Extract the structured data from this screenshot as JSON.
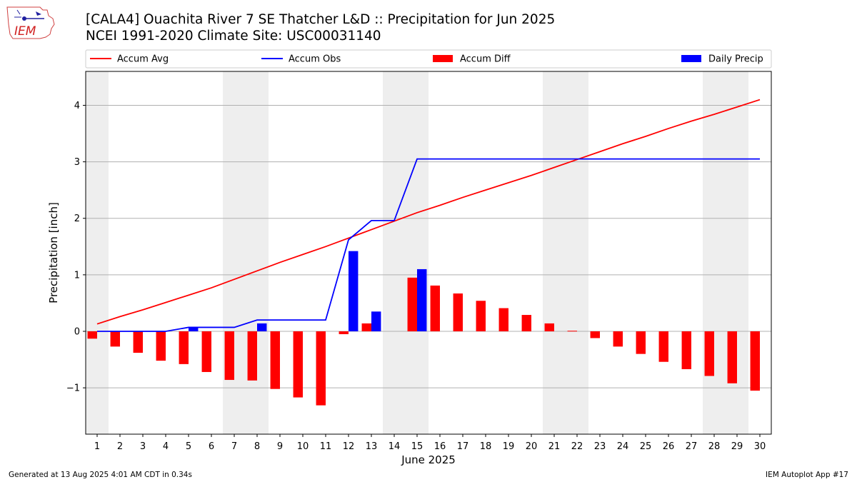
{
  "header": {
    "logo_text": "IEM",
    "title_line1": "[CALA4] Ouachita River 7 SE Thatcher L&D :: Precipitation for Jun 2025",
    "title_line2": "NCEI 1991-2020 Climate Site: USC00031140"
  },
  "footer": {
    "left": "Generated at 13 Aug 2025 4:01 AM CDT in 0.34s",
    "right": "IEM Autoplot App #17"
  },
  "chart_data": {
    "type": "bar",
    "xlabel": "June 2025",
    "ylabel": "Precipitation [inch]",
    "categories": [
      "1",
      "2",
      "3",
      "4",
      "5",
      "6",
      "7",
      "8",
      "9",
      "10",
      "11",
      "12",
      "13",
      "14",
      "15",
      "16",
      "17",
      "18",
      "19",
      "20",
      "21",
      "22",
      "23",
      "24",
      "25",
      "26",
      "27",
      "28",
      "29",
      "30"
    ],
    "ylim": [
      -1.82,
      4.6
    ],
    "yticks": [
      -1,
      0,
      1,
      2,
      3,
      4
    ],
    "ytick_labels": [
      "−1",
      "0",
      "1",
      "2",
      "3",
      "4"
    ],
    "grid": true,
    "weekend_shading_days": [
      1,
      7,
      8,
      14,
      15,
      21,
      22,
      28,
      29
    ],
    "legend": {
      "placement": "top",
      "columns": 4
    },
    "series": [
      {
        "name": "Accum Avg",
        "kind": "line",
        "color": "#ff0000",
        "values": [
          0.13,
          0.26,
          0.38,
          0.51,
          0.64,
          0.77,
          0.92,
          1.07,
          1.22,
          1.36,
          1.5,
          1.65,
          1.8,
          1.95,
          2.1,
          2.23,
          2.37,
          2.5,
          2.63,
          2.76,
          2.9,
          3.04,
          3.18,
          3.32,
          3.45,
          3.59,
          3.72,
          3.84,
          3.97,
          4.1
        ]
      },
      {
        "name": "Accum Obs",
        "kind": "line",
        "color": "#0000ff",
        "values": [
          0,
          0,
          0,
          0,
          0.07,
          0.07,
          0.07,
          0.2,
          0.2,
          0.2,
          0.2,
          1.62,
          1.96,
          1.96,
          3.05,
          3.05,
          3.05,
          3.05,
          3.05,
          3.05,
          3.05,
          3.05,
          3.05,
          3.05,
          3.05,
          3.05,
          3.05,
          3.05,
          3.05,
          3.05
        ]
      },
      {
        "name": "Accum Diff",
        "kind": "bar",
        "color": "#ff0000",
        "values": [
          -0.13,
          -0.27,
          -0.38,
          -0.52,
          -0.58,
          -0.72,
          -0.86,
          -0.87,
          -1.02,
          -1.17,
          -1.31,
          -0.05,
          0.14,
          null,
          0.95,
          0.81,
          0.67,
          0.54,
          0.41,
          0.29,
          0.14,
          0.01,
          -0.12,
          -0.27,
          -0.4,
          -0.54,
          -0.67,
          -0.79,
          -0.92,
          -1.05
        ]
      },
      {
        "name": "Daily Precip",
        "kind": "bar",
        "color": "#0000ff",
        "values": [
          0,
          0,
          0,
          0,
          0.07,
          0,
          0,
          0.14,
          0,
          0,
          0,
          1.42,
          0.35,
          0,
          1.1,
          0,
          0,
          0,
          0,
          0,
          0,
          0,
          0,
          0,
          0,
          0,
          0,
          0,
          0,
          0
        ]
      }
    ]
  }
}
